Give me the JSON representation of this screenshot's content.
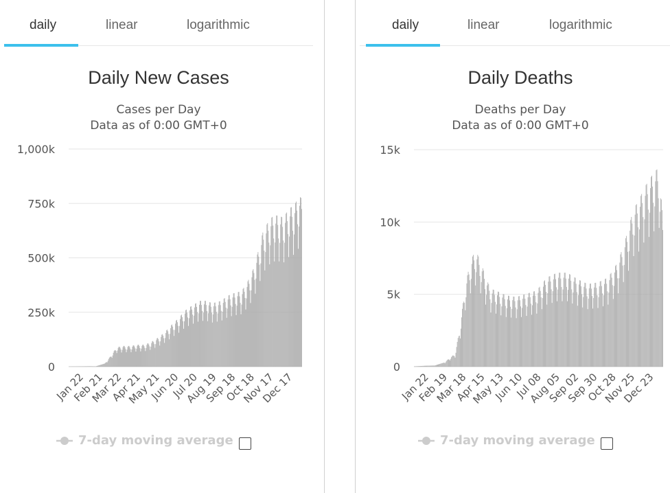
{
  "tabs": [
    "daily",
    "linear",
    "logarithmic"
  ],
  "legend_label": "7-day moving average",
  "colors": {
    "bar": "#a8a8a8",
    "grid": "#e6e6e6",
    "tab_active": "#3cc0ec",
    "legend": "#cccccc"
  },
  "chart_data": [
    {
      "type": "bar",
      "title": "Daily New Cases",
      "subtitle_1": "Cases per Day",
      "subtitle_2": "Data as of 0:00 GMT+0",
      "ylim": [
        0,
        1000000
      ],
      "yticks": [
        0,
        250000,
        500000,
        750000,
        1000000
      ],
      "ytick_labels": [
        "0",
        "250k",
        "500k",
        "750k",
        "1,000k"
      ],
      "xtick_labels": [
        "Jan 22",
        "Feb 21",
        "Mar 22",
        "Apr 21",
        "May 21",
        "Jun 20",
        "Jul 20",
        "Aug 19",
        "Sep 18",
        "Oct 18",
        "Nov 17",
        "Dec 17"
      ],
      "x": [
        "2020-01-22",
        "2020-02-21",
        "2020-03-01",
        "2020-03-15",
        "2020-03-22",
        "2020-04-01",
        "2020-04-11",
        "2020-04-21",
        "2020-05-01",
        "2020-05-11",
        "2020-05-21",
        "2020-06-01",
        "2020-06-10",
        "2020-06-20",
        "2020-07-01",
        "2020-07-10",
        "2020-07-20",
        "2020-08-01",
        "2020-08-10",
        "2020-08-19",
        "2020-09-01",
        "2020-09-10",
        "2020-09-18",
        "2020-10-01",
        "2020-10-10",
        "2020-10-18",
        "2020-10-25",
        "2020-11-01",
        "2020-11-10",
        "2020-11-17",
        "2020-11-25",
        "2020-12-01",
        "2020-12-10",
        "2020-12-17",
        "2020-12-24",
        "2020-12-28"
      ],
      "values": [
        500,
        2000,
        1500,
        15000,
        40000,
        80000,
        85000,
        85000,
        90000,
        90000,
        100000,
        120000,
        140000,
        170000,
        200000,
        230000,
        250000,
        270000,
        270000,
        260000,
        270000,
        290000,
        300000,
        310000,
        350000,
        400000,
        470000,
        550000,
        600000,
        620000,
        620000,
        610000,
        650000,
        660000,
        700000,
        690000
      ]
    },
    {
      "type": "bar",
      "title": "Daily Deaths",
      "subtitle_1": "Deaths per Day",
      "subtitle_2": "Data as of 0:00 GMT+0",
      "ylim": [
        0,
        15000
      ],
      "yticks": [
        0,
        5000,
        10000,
        15000
      ],
      "ytick_labels": [
        "0",
        "5k",
        "10k",
        "15k"
      ],
      "xtick_labels": [
        "Jan 22",
        "Feb 19",
        "Mar 18",
        "Apr 15",
        "May 13",
        "Jun 10",
        "Jul 08",
        "Aug 05",
        "Sep 02",
        "Sep 30",
        "Oct 28",
        "Nov 25",
        "Dec 23"
      ],
      "x": [
        "2020-01-22",
        "2020-02-05",
        "2020-02-19",
        "2020-03-04",
        "2020-03-18",
        "2020-03-25",
        "2020-04-01",
        "2020-04-08",
        "2020-04-15",
        "2020-04-22",
        "2020-04-29",
        "2020-05-06",
        "2020-05-13",
        "2020-05-27",
        "2020-06-10",
        "2020-06-24",
        "2020-07-08",
        "2020-07-22",
        "2020-08-05",
        "2020-08-19",
        "2020-09-02",
        "2020-09-16",
        "2020-09-30",
        "2020-10-14",
        "2020-10-28",
        "2020-11-04",
        "2020-11-11",
        "2020-11-18",
        "2020-11-25",
        "2020-12-02",
        "2020-12-09",
        "2020-12-16",
        "2020-12-23",
        "2020-12-28"
      ],
      "values": [
        20,
        60,
        80,
        300,
        800,
        2500,
        5000,
        6500,
        7200,
        6500,
        5500,
        4800,
        4700,
        4400,
        4300,
        4500,
        4700,
        5500,
        5800,
        5800,
        5400,
        5100,
        5200,
        5500,
        6500,
        7500,
        8500,
        9800,
        10200,
        11000,
        11500,
        12000,
        12300,
        9000
      ]
    }
  ]
}
